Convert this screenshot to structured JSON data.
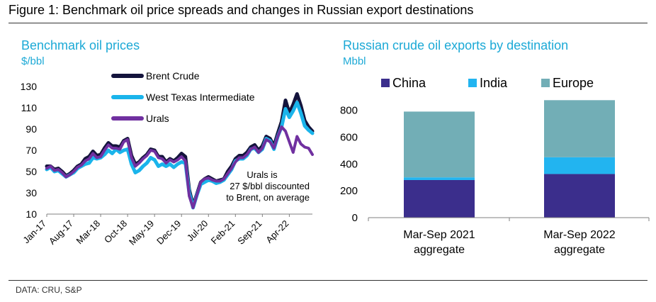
{
  "figure": {
    "title": "Figure 1: Benchmark oil price spreads and changes in Russian export destinations",
    "source": "DATA: CRU, S&P"
  },
  "chart_data": [
    {
      "type": "line",
      "title": "Benchmark oil prices",
      "ylabel": "$/bbl",
      "xlabel": "",
      "ylim": [
        10,
        130
      ],
      "yticks": [
        10,
        30,
        50,
        70,
        90,
        110,
        130
      ],
      "x_start": "2017-01",
      "x_labels": [
        "Jan-17",
        "Aug-17",
        "Mar-18",
        "Oct-18",
        "May-19",
        "Dec-19",
        "Jul-20",
        "Feb-21",
        "Sep-21",
        "Apr-22"
      ],
      "x_label_indices": [
        0,
        7,
        14,
        21,
        28,
        35,
        42,
        49,
        56,
        63
      ],
      "legend_position": "top-center",
      "annotation": "Urals is 27 $/bbl discounted to Brent, on average",
      "colors": {
        "brent": "#14143c",
        "wti": "#1ab4eb",
        "urals": "#7030a0"
      },
      "series": [
        {
          "name": "Brent Crude",
          "values": [
            55,
            55,
            52,
            53,
            50,
            46,
            48,
            51,
            55,
            57,
            62,
            64,
            69,
            65,
            66,
            72,
            77,
            74,
            74,
            73,
            79,
            81,
            65,
            57,
            59,
            63,
            66,
            71,
            70,
            64,
            64,
            59,
            62,
            60,
            63,
            67,
            64,
            33,
            18,
            29,
            40,
            43,
            45,
            43,
            41,
            42,
            43,
            50,
            55,
            62,
            65,
            65,
            68,
            73,
            75,
            70,
            74,
            83,
            81,
            74,
            86,
            97,
            117,
            105,
            113,
            123,
            112,
            98,
            92,
            88
          ]
        },
        {
          "name": "West Texas Intermediate",
          "values": [
            52,
            54,
            50,
            51,
            48,
            45,
            47,
            49,
            53,
            55,
            57,
            58,
            63,
            62,
            63,
            66,
            70,
            67,
            71,
            68,
            70,
            71,
            57,
            49,
            51,
            55,
            58,
            63,
            61,
            55,
            57,
            55,
            57,
            54,
            57,
            59,
            58,
            30,
            16,
            28,
            38,
            40,
            42,
            41,
            39,
            40,
            42,
            47,
            52,
            60,
            62,
            62,
            65,
            71,
            72,
            68,
            71,
            81,
            79,
            71,
            83,
            92,
            109,
            101,
            107,
            115,
            105,
            93,
            89,
            86
          ]
        },
        {
          "name": "Urals",
          "values": [
            53,
            55,
            51,
            52,
            49,
            45,
            47,
            50,
            54,
            56,
            60,
            62,
            67,
            63,
            64,
            70,
            75,
            72,
            72,
            71,
            78,
            80,
            63,
            55,
            58,
            62,
            65,
            70,
            69,
            63,
            62,
            58,
            61,
            59,
            61,
            64,
            60,
            27,
            16,
            28,
            40,
            43,
            44,
            42,
            41,
            41,
            43,
            48,
            53,
            59,
            63,
            63,
            66,
            71,
            73,
            68,
            72,
            80,
            78,
            72,
            83,
            92,
            88,
            78,
            68,
            83,
            76,
            73,
            72,
            66
          ]
        }
      ]
    },
    {
      "type": "bar",
      "stacked": true,
      "title": "Russian crude oil exports by destination",
      "ylabel": "Mbbl",
      "xlabel": "",
      "ylim": [
        0,
        880
      ],
      "yticks": [
        0,
        200,
        400,
        600,
        800
      ],
      "categories": [
        "Mar-Sep 2021 aggregate",
        "Mar-Sep 2022 aggregate"
      ],
      "category_lines": [
        [
          "Mar-Sep 2021",
          "aggregate"
        ],
        [
          "Mar-Sep 2022",
          "aggregate"
        ]
      ],
      "legend_position": "top",
      "series": [
        {
          "name": "China",
          "color": "#3b2e8c",
          "values": [
            280,
            325
          ]
        },
        {
          "name": "India",
          "color": "#22b4f0",
          "values": [
            20,
            125
          ]
        },
        {
          "name": "Europe",
          "color": "#72aeb6",
          "values": [
            490,
            425
          ]
        }
      ]
    }
  ]
}
